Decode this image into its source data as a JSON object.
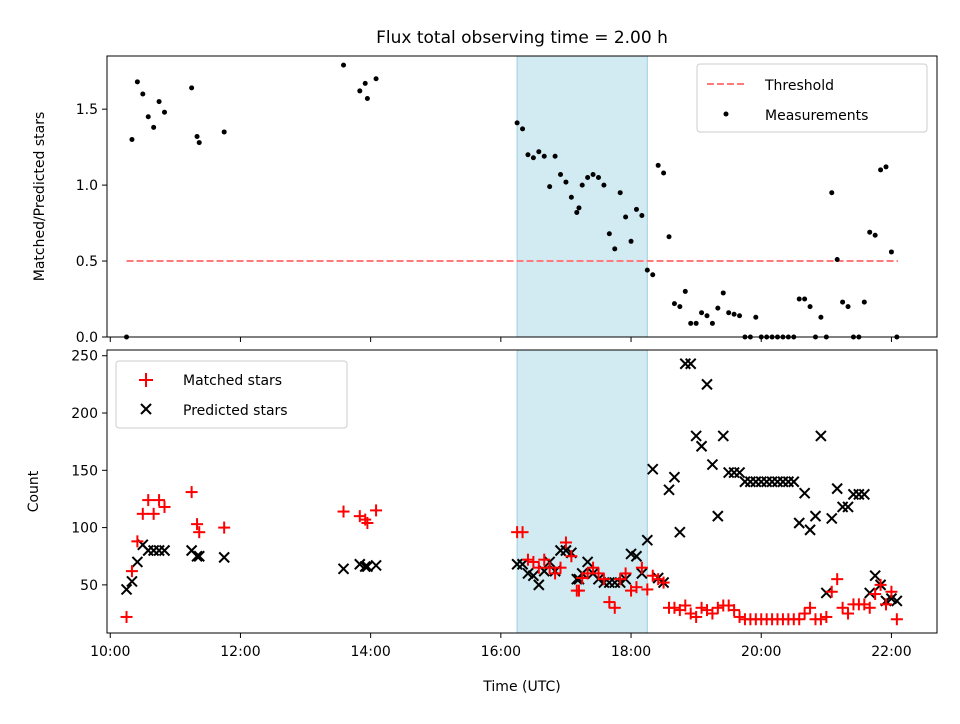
{
  "chart_data": [
    {
      "type": "scatter",
      "title": "Flux total observing time = 2.00 h",
      "xlabel": "",
      "ylabel": "Matched/Predicted stars",
      "xlim": [
        "09:57",
        "22:42"
      ],
      "ylim": [
        0,
        1.85
      ],
      "yticks": [
        "0.0",
        "0.5",
        "1.0",
        "1.5"
      ],
      "xticks": [
        "10:00",
        "12:00",
        "14:00",
        "16:00",
        "18:00",
        "20:00",
        "22:00"
      ],
      "highlight_span": [
        "16:15",
        "18:15"
      ],
      "legend": {
        "position": "top-right",
        "entries": [
          "Threshold",
          "Measurements"
        ]
      },
      "colors": {
        "threshold": "#ff7b7b",
        "measurements": "#000000",
        "span": "#add8e6"
      },
      "threshold": {
        "name": "Threshold",
        "value": 0.5,
        "x": [
          "10:15",
          "22:06"
        ]
      },
      "series": [
        {
          "name": "Measurements",
          "x": [
            "10:15",
            "10:20",
            "10:25",
            "10:30",
            "10:35",
            "10:40",
            "10:45",
            "10:50",
            "11:15",
            "11:20",
            "11:22",
            "11:45",
            "13:35",
            "13:50",
            "13:55",
            "13:57",
            "14:05",
            "16:15",
            "16:20",
            "16:25",
            "16:30",
            "16:35",
            "16:40",
            "16:45",
            "16:50",
            "16:55",
            "17:00",
            "17:05",
            "17:10",
            "17:12",
            "17:15",
            "17:20",
            "17:25",
            "17:30",
            "17:35",
            "17:40",
            "17:45",
            "17:50",
            "17:55",
            "18:00",
            "18:05",
            "18:10",
            "18:15",
            "18:20",
            "18:25",
            "18:30",
            "18:35",
            "18:40",
            "18:45",
            "18:50",
            "18:55",
            "19:00",
            "19:05",
            "19:10",
            "19:15",
            "19:20",
            "19:25",
            "19:30",
            "19:35",
            "19:40",
            "19:45",
            "19:50",
            "19:55",
            "20:00",
            "20:05",
            "20:10",
            "20:15",
            "20:20",
            "20:25",
            "20:30",
            "20:35",
            "20:40",
            "20:45",
            "20:50",
            "20:55",
            "21:00",
            "21:05",
            "21:10",
            "21:15",
            "21:20",
            "21:25",
            "21:30",
            "21:35",
            "21:40",
            "21:45",
            "21:50",
            "21:55",
            "22:00",
            "22:05"
          ],
          "y": [
            0.0,
            1.3,
            1.68,
            1.6,
            1.45,
            1.38,
            1.55,
            1.48,
            1.64,
            1.32,
            1.28,
            1.35,
            1.79,
            1.62,
            1.67,
            1.57,
            1.7,
            1.41,
            1.37,
            1.2,
            1.18,
            1.22,
            1.19,
            0.99,
            1.19,
            1.07,
            1.02,
            0.92,
            0.82,
            0.85,
            1.0,
            1.05,
            1.07,
            1.05,
            1.0,
            0.68,
            0.58,
            0.95,
            0.79,
            0.63,
            0.84,
            0.8,
            0.44,
            0.41,
            1.13,
            1.08,
            0.66,
            0.22,
            0.2,
            0.3,
            0.09,
            0.09,
            0.16,
            0.14,
            0.09,
            0.19,
            0.29,
            0.16,
            0.15,
            0.14,
            0.0,
            0.0,
            0.13,
            0.0,
            0.0,
            0.0,
            0.0,
            0.0,
            0.0,
            0.0,
            0.25,
            0.25,
            0.2,
            0.0,
            0.13,
            0.0,
            0.95,
            0.51,
            0.23,
            0.2,
            0.0,
            0.0,
            0.23,
            0.69,
            0.67,
            1.1,
            1.12,
            0.56,
            0.0
          ]
        }
      ]
    },
    {
      "type": "scatter",
      "title": "",
      "xlabel": "Time (UTC)",
      "ylabel": "Count",
      "xlim": [
        "09:57",
        "22:42"
      ],
      "ylim": [
        8,
        255
      ],
      "yticks": [
        "50",
        "100",
        "150",
        "200",
        "250"
      ],
      "xticks": [
        "10:00",
        "12:00",
        "14:00",
        "16:00",
        "18:00",
        "20:00",
        "22:00"
      ],
      "highlight_span": [
        "16:15",
        "18:15"
      ],
      "legend": {
        "position": "top-left",
        "entries": [
          "Matched stars",
          "Predicted stars"
        ]
      },
      "colors": {
        "matched": "#ff0000",
        "predicted": "#000000",
        "span": "#add8e6"
      },
      "series": [
        {
          "name": "Matched stars",
          "marker": "+",
          "x": [
            "10:15",
            "10:20",
            "10:25",
            "10:30",
            "10:35",
            "10:40",
            "10:45",
            "10:50",
            "11:15",
            "11:20",
            "11:22",
            "11:45",
            "13:35",
            "13:50",
            "13:55",
            "13:57",
            "14:05",
            "16:15",
            "16:20",
            "16:25",
            "16:30",
            "16:35",
            "16:40",
            "16:45",
            "16:50",
            "16:55",
            "17:00",
            "17:05",
            "17:10",
            "17:12",
            "17:15",
            "17:20",
            "17:25",
            "17:30",
            "17:35",
            "17:40",
            "17:45",
            "17:50",
            "17:55",
            "18:00",
            "18:05",
            "18:10",
            "18:15",
            "18:20",
            "18:25",
            "18:30",
            "18:35",
            "18:40",
            "18:45",
            "18:50",
            "18:55",
            "19:00",
            "19:05",
            "19:10",
            "19:15",
            "19:20",
            "19:25",
            "19:30",
            "19:35",
            "19:40",
            "19:45",
            "19:50",
            "19:55",
            "20:00",
            "20:05",
            "20:10",
            "20:15",
            "20:20",
            "20:25",
            "20:30",
            "20:35",
            "20:40",
            "20:45",
            "20:50",
            "20:55",
            "21:00",
            "21:05",
            "21:10",
            "21:15",
            "21:20",
            "21:25",
            "21:30",
            "21:35",
            "21:40",
            "21:45",
            "21:50",
            "21:55",
            "22:00",
            "22:05"
          ],
          "y": [
            22,
            62,
            88,
            112,
            124,
            112,
            124,
            118,
            131,
            103,
            96,
            100,
            114,
            110,
            107,
            104,
            115,
            96,
            96,
            72,
            70,
            65,
            72,
            65,
            60,
            65,
            87,
            75,
            45,
            45,
            56,
            60,
            65,
            60,
            55,
            35,
            30,
            55,
            60,
            45,
            48,
            65,
            46,
            58,
            55,
            52,
            30,
            30,
            28,
            32,
            25,
            22,
            30,
            28,
            25,
            30,
            32,
            32,
            28,
            22,
            20,
            20,
            20,
            20,
            20,
            20,
            20,
            20,
            20,
            20,
            20,
            25,
            30,
            20,
            20,
            22,
            44,
            55,
            30,
            25,
            33,
            33,
            33,
            30,
            42,
            50,
            33,
            44,
            20
          ]
        },
        {
          "name": "Predicted stars",
          "marker": "x",
          "x": [
            "10:15",
            "10:20",
            "10:25",
            "10:30",
            "10:35",
            "10:40",
            "10:45",
            "10:50",
            "11:15",
            "11:20",
            "11:22",
            "11:45",
            "13:35",
            "13:50",
            "13:55",
            "13:57",
            "14:05",
            "16:15",
            "16:20",
            "16:25",
            "16:30",
            "16:35",
            "16:40",
            "16:45",
            "16:50",
            "16:55",
            "17:00",
            "17:05",
            "17:10",
            "17:12",
            "17:15",
            "17:20",
            "17:25",
            "17:30",
            "17:35",
            "17:40",
            "17:45",
            "17:50",
            "17:55",
            "18:00",
            "18:05",
            "18:10",
            "18:15",
            "18:20",
            "18:25",
            "18:30",
            "18:35",
            "18:40",
            "18:45",
            "18:50",
            "18:55",
            "19:00",
            "19:05",
            "19:10",
            "19:15",
            "19:20",
            "19:25",
            "19:30",
            "19:35",
            "19:40",
            "19:45",
            "19:50",
            "19:55",
            "20:00",
            "20:05",
            "20:10",
            "20:15",
            "20:20",
            "20:25",
            "20:30",
            "20:35",
            "20:40",
            "20:45",
            "20:50",
            "20:55",
            "21:00",
            "21:05",
            "21:10",
            "21:15",
            "21:20",
            "21:25",
            "21:30",
            "21:35",
            "21:40",
            "21:45",
            "21:50",
            "21:55",
            "22:00",
            "22:05"
          ],
          "y": [
            46,
            53,
            70,
            85,
            80,
            80,
            80,
            80,
            80,
            75,
            75,
            74,
            64,
            68,
            66,
            66,
            67,
            68,
            68,
            60,
            58,
            50,
            62,
            70,
            62,
            80,
            80,
            78,
            55,
            55,
            60,
            70,
            60,
            55,
            52,
            52,
            52,
            52,
            55,
            77,
            75,
            60,
            89,
            151,
            56,
            52,
            133,
            144,
            96,
            243,
            243,
            180,
            171,
            225,
            155,
            110,
            180,
            148,
            148,
            148,
            140,
            140,
            140,
            140,
            140,
            140,
            140,
            140,
            140,
            140,
            104,
            130,
            98,
            110,
            180,
            43,
            108,
            134,
            118,
            118,
            129,
            129,
            129,
            43,
            58,
            50,
            36,
            38,
            36
          ]
        }
      ]
    }
  ]
}
